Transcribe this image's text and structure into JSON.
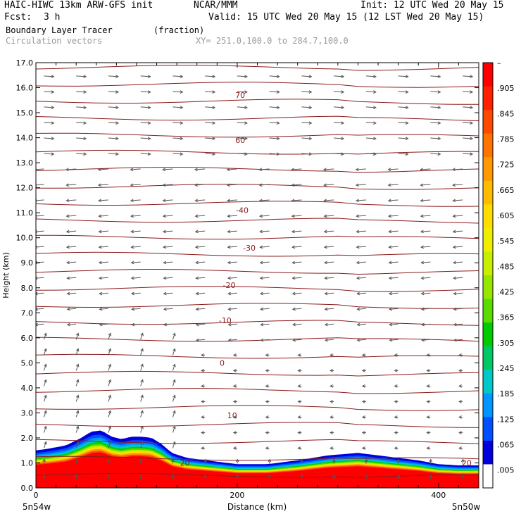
{
  "header": {
    "model": "HAIC-HIWC 13km ARW-GFS init",
    "org": "NCAR/MMM",
    "init": "Init: 12 UTC Wed 20 May 15",
    "fcst_label": "Fcst:",
    "fcst_value": "3 h",
    "valid": "Valid: 15 UTC Wed 20 May 15 (12 LST Wed 20 May 15)",
    "field1_name": "Boundary Layer Tracer",
    "field1_units": "(fraction)",
    "field2_name": "Circulation vectors",
    "xy": "XY= 251.0,100.0 to 284.7,100.0"
  },
  "colors": {
    "contour": "#8b1a1a",
    "vector": "#555555",
    "frame": "#000000"
  },
  "chart_data": {
    "type": "heatmap",
    "ylabel": "Height (km)",
    "xlabel": "Distance (km)",
    "xlim": [
      0,
      440
    ],
    "ylim": [
      0,
      17
    ],
    "yticks": [
      "0.0",
      "1.0",
      "2.0",
      "3.0",
      "4.0",
      "5.0",
      "6.0",
      "7.0",
      "8.0",
      "9.0",
      "10.0",
      "11.0",
      "12.0",
      "13.0",
      "14.0",
      "15.0",
      "16.0",
      "17.0"
    ],
    "xticks": [
      {
        "value": 0,
        "label": "0"
      },
      {
        "value": 200,
        "label": "200"
      },
      {
        "value": 400,
        "label": "400"
      }
    ],
    "x_start_label": "5n54w",
    "x_end_label": "5n50w",
    "colorbar": {
      "labels": [
        "–",
        ".905",
        ".845",
        ".785",
        ".725",
        ".665",
        ".605",
        ".545",
        ".485",
        ".425",
        ".365",
        ".305",
        ".245",
        ".185",
        ".125",
        ".065",
        ".005"
      ],
      "colors": [
        "#ff0000",
        "#ff2000",
        "#ff4a00",
        "#ff7300",
        "#ff9900",
        "#ffbb00",
        "#ffdd00",
        "#f0ee00",
        "#c8ee00",
        "#96e600",
        "#5adc00",
        "#00cc00",
        "#00c864",
        "#00c8c8",
        "#0096ff",
        "#0050ff",
        "#0000dc",
        "#ffffff"
      ]
    },
    "tracer_top_profile": {
      "x": [
        0,
        10,
        30,
        45,
        55,
        65,
        75,
        85,
        95,
        105,
        115,
        125,
        135,
        150,
        170,
        200,
        230,
        260,
        290,
        320,
        340,
        360,
        380,
        400,
        420,
        440
      ],
      "height_km": [
        1.5,
        1.55,
        1.7,
        2.0,
        2.25,
        2.3,
        2.05,
        1.95,
        2.05,
        2.05,
        2.0,
        1.75,
        1.4,
        1.2,
        1.1,
        0.95,
        0.95,
        1.1,
        1.3,
        1.4,
        1.3,
        1.2,
        1.1,
        0.95,
        0.9,
        0.9
      ]
    },
    "contour_labels": [
      {
        "x": 203,
        "y": 15.7,
        "label": "70"
      },
      {
        "x": 203,
        "y": 13.9,
        "label": "60"
      },
      {
        "x": 205,
        "y": 11.1,
        "label": "-40"
      },
      {
        "x": 212,
        "y": 9.6,
        "label": "-30"
      },
      {
        "x": 192,
        "y": 8.1,
        "label": "-20"
      },
      {
        "x": 188,
        "y": 6.7,
        "label": "-10"
      },
      {
        "x": 185,
        "y": 5.0,
        "label": "0"
      },
      {
        "x": 195,
        "y": 2.9,
        "label": "10"
      },
      {
        "x": 148,
        "y": 1.0,
        "label": "20"
      },
      {
        "x": 428,
        "y": 1.0,
        "label": "20"
      }
    ]
  }
}
